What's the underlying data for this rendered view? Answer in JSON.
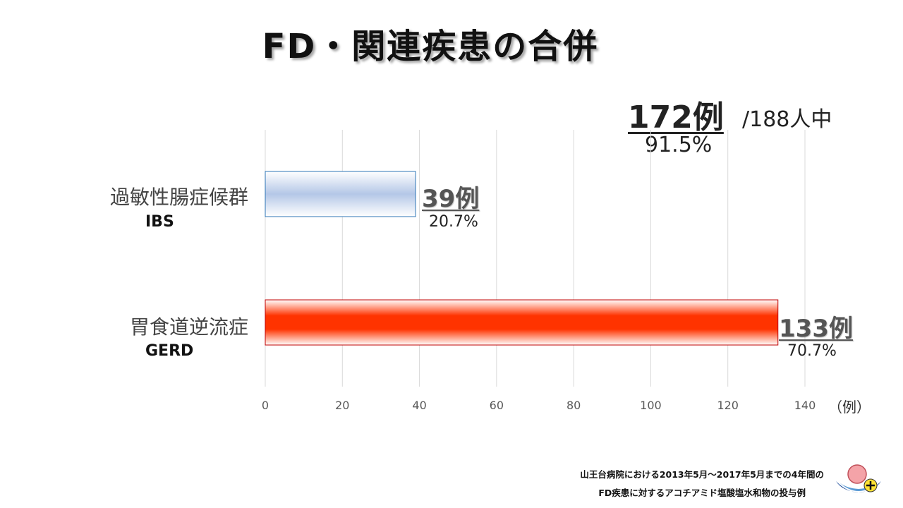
{
  "title": "FD・関連疾患の合併",
  "summary": {
    "count": "172例",
    "of_total": "/188人中",
    "percent": "91.5%"
  },
  "chart_data": {
    "type": "bar",
    "orientation": "horizontal",
    "categories": [
      "過敏性腸症候群",
      "胃食道逆流症"
    ],
    "category_sublabels": [
      "IBS",
      "GERD"
    ],
    "values": [
      39,
      133
    ],
    "value_labels": [
      "39例",
      "133例"
    ],
    "percent_labels": [
      "20.7%",
      "70.7%"
    ],
    "colors": [
      "#b4c7e7",
      "#ff3300"
    ],
    "xlim": [
      0,
      140
    ],
    "xticks": [
      0,
      20,
      40,
      60,
      80,
      100,
      120,
      140
    ],
    "xtick_labels": [
      "0",
      "20",
      "40",
      "60",
      "80",
      "100",
      "120",
      "140"
    ],
    "x_unit": "（例）",
    "grid": true
  },
  "footnote": {
    "line1": "山王台病院における2013年5月～2017年5月までの4年間の",
    "line2": "FD疾患に対するアコチアミド塩酸塩水和物の投与例"
  }
}
